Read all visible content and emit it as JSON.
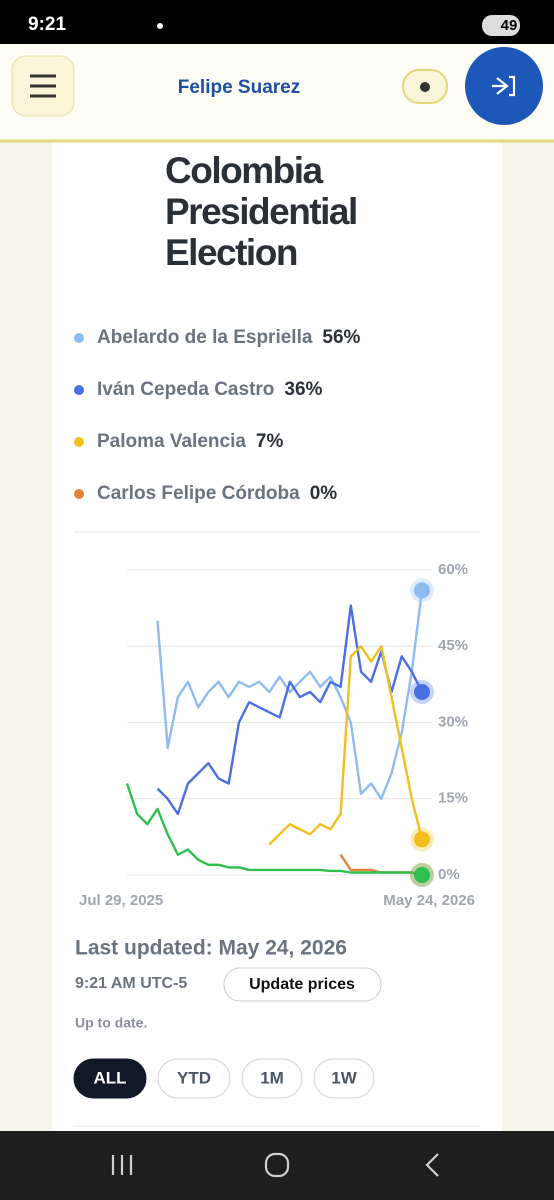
{
  "status_bar": {
    "time": "9:21",
    "battery": "49"
  },
  "header": {
    "user": "Felipe Suarez"
  },
  "chart_data": {
    "type": "line",
    "title": "Colombia Presidential Election",
    "categories": [
      "Jul 29, 2025",
      null,
      null,
      null,
      null,
      null,
      null,
      null,
      null,
      null,
      null,
      null,
      null,
      null,
      null,
      null,
      null,
      null,
      null,
      null,
      null,
      null,
      null,
      null,
      null,
      null,
      null,
      null,
      null,
      "May 24, 2026"
    ],
    "series": [
      {
        "name": "Abelardo de la Espriella",
        "current": "56%",
        "color": "#8fbcf0",
        "values": [
          null,
          null,
          null,
          50,
          25,
          35,
          38,
          33,
          36,
          38,
          35,
          38,
          37,
          38,
          36,
          39,
          36,
          38,
          40,
          37,
          39,
          35,
          30,
          16,
          18,
          15,
          20,
          28,
          40,
          56
        ]
      },
      {
        "name": "Iván Cepeda Castro",
        "current": "36%",
        "color": "#4a6fe3",
        "values": [
          null,
          null,
          null,
          17,
          15,
          12,
          18,
          20,
          22,
          19,
          18,
          30,
          34,
          33,
          32,
          31,
          38,
          35,
          36,
          34,
          38,
          37,
          53,
          40,
          38,
          44,
          36,
          43,
          40,
          36
        ]
      },
      {
        "name": "Paloma Valencia",
        "current": "7%",
        "color": "#f2c01e",
        "values": [
          null,
          null,
          null,
          null,
          null,
          null,
          null,
          null,
          null,
          null,
          null,
          null,
          null,
          null,
          6,
          8,
          10,
          9,
          8,
          10,
          9,
          12,
          43,
          45,
          42,
          45,
          35,
          25,
          15,
          7
        ]
      },
      {
        "name": "Carlos Felipe Córdoba",
        "current": "0%",
        "color": "#e8803a",
        "values": [
          null,
          null,
          null,
          null,
          null,
          null,
          null,
          null,
          null,
          null,
          null,
          null,
          null,
          null,
          null,
          null,
          null,
          null,
          null,
          null,
          null,
          4,
          1,
          1,
          1,
          0.5,
          0.5,
          0.5,
          0.5,
          0
        ]
      },
      {
        "color": "#2fbf4f",
        "values": [
          18,
          12,
          10,
          13,
          8,
          4,
          5,
          3,
          2,
          2,
          1.5,
          1.5,
          1,
          1,
          1,
          1,
          1,
          1,
          1,
          1,
          0.8,
          0.8,
          0.5,
          0.5,
          0.5,
          0.5,
          0.5,
          0.5,
          0.5,
          0
        ]
      }
    ],
    "ylim": [
      0,
      60
    ],
    "yticks": [
      {
        "value": 0,
        "label": "0%"
      },
      {
        "value": 15,
        "label": "15%"
      },
      {
        "value": 30,
        "label": "30%"
      },
      {
        "value": 45,
        "label": "45%"
      },
      {
        "value": 60,
        "label": "60%"
      }
    ],
    "grid": true
  },
  "footer": {
    "last_updated": "Last updated: May 24, 2026",
    "time": "9:21 AM UTC-5",
    "update_button": "Update prices",
    "status": "Up to date.",
    "ranges": [
      "ALL",
      "YTD",
      "1M",
      "1W"
    ]
  }
}
